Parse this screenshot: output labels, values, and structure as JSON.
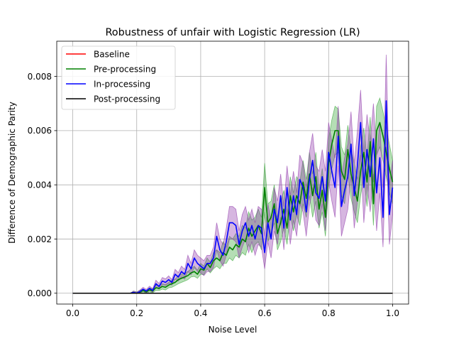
{
  "chart_data": {
    "type": "line",
    "title": "Robustness of unfair with Logistic Regression (LR)",
    "xlabel": "Noise Level",
    "ylabel": "Difference of Demographic Parity",
    "xlim": [
      -0.05,
      1.05
    ],
    "ylim": [
      -0.0004,
      0.0093
    ],
    "grid": true,
    "legend_position": "top-left",
    "x_ticks": [
      0.0,
      0.2,
      0.4,
      0.6,
      0.8,
      1.0
    ],
    "x_tick_labels": [
      "0.0",
      "0.2",
      "0.4",
      "0.6",
      "0.8",
      "1.0"
    ],
    "y_ticks": [
      0.0,
      0.002,
      0.004,
      0.006,
      0.008
    ],
    "y_tick_labels": [
      "0.000",
      "0.002",
      "0.004",
      "0.006",
      "0.008"
    ],
    "x": [
      0.0,
      0.01,
      0.02,
      0.03,
      0.04,
      0.05,
      0.06,
      0.07,
      0.08,
      0.09,
      0.1,
      0.11,
      0.12,
      0.13,
      0.14,
      0.15,
      0.16,
      0.17,
      0.18,
      0.19,
      0.2,
      0.21,
      0.22,
      0.23,
      0.24,
      0.25,
      0.26,
      0.27,
      0.28,
      0.29,
      0.3,
      0.31,
      0.32,
      0.33,
      0.34,
      0.35,
      0.36,
      0.37,
      0.38,
      0.39,
      0.4,
      0.41,
      0.42,
      0.43,
      0.44,
      0.45,
      0.46,
      0.47,
      0.48,
      0.49,
      0.5,
      0.51,
      0.52,
      0.53,
      0.54,
      0.55,
      0.56,
      0.57,
      0.58,
      0.59,
      0.6,
      0.61,
      0.62,
      0.63,
      0.64,
      0.65,
      0.66,
      0.67,
      0.68,
      0.69,
      0.7,
      0.71,
      0.72,
      0.73,
      0.74,
      0.75,
      0.76,
      0.77,
      0.78,
      0.79,
      0.8,
      0.81,
      0.82,
      0.83,
      0.84,
      0.85,
      0.86,
      0.87,
      0.88,
      0.89,
      0.9,
      0.91,
      0.92,
      0.93,
      0.94,
      0.95,
      0.96,
      0.97,
      0.98,
      0.99,
      1.0
    ],
    "series": [
      {
        "name": "Baseline",
        "color": "#ff0000",
        "values": [
          0,
          0,
          0,
          0,
          0,
          0,
          0,
          0,
          0,
          0,
          0,
          0,
          0,
          0,
          0,
          0,
          0,
          0,
          0,
          0,
          0,
          0,
          0,
          0,
          0,
          0,
          0,
          0,
          0,
          0,
          0,
          0,
          0,
          0,
          0,
          0,
          0,
          0,
          0,
          0,
          0,
          0,
          0,
          0,
          0,
          0,
          0,
          0,
          0,
          0,
          0,
          0,
          0,
          0,
          0,
          0,
          0,
          0,
          0,
          0,
          0,
          0,
          0,
          0,
          0,
          0,
          0,
          0,
          0,
          0,
          0,
          0,
          0,
          0,
          0,
          0,
          0,
          0,
          0,
          0,
          0,
          0,
          0,
          0,
          0,
          0,
          0,
          0,
          0,
          0,
          0,
          0,
          0,
          0,
          0,
          0,
          0,
          0,
          0,
          0,
          0
        ]
      },
      {
        "name": "Pre-processing",
        "color": "#008000",
        "band_color": "#2ca02c",
        "values": [
          0,
          0,
          0,
          0,
          0,
          0,
          0,
          0,
          0,
          0,
          0,
          0,
          0,
          0,
          0,
          0,
          0,
          0,
          0,
          3e-05,
          0,
          4e-05,
          0.0001,
          5e-05,
          0.00012,
          8e-05,
          0.0002,
          0.00018,
          0.00025,
          0.00022,
          0.0003,
          0.00035,
          0.0004,
          0.0005,
          0.00055,
          0.0006,
          0.00065,
          0.00075,
          0.0008,
          0.0007,
          0.0009,
          0.00085,
          0.0011,
          0.00095,
          0.0012,
          0.0013,
          0.0012,
          0.0015,
          0.0014,
          0.0017,
          0.0016,
          0.0018,
          0.0017,
          0.002,
          0.0019,
          0.0024,
          0.0021,
          0.0023,
          0.0025,
          0.0022,
          0.0039,
          0.0026,
          0.0028,
          0.0033,
          0.0022,
          0.0026,
          0.0031,
          0.0024,
          0.0036,
          0.003,
          0.0036,
          0.0033,
          0.0041,
          0.0035,
          0.0044,
          0.0036,
          0.0043,
          0.0031,
          0.0038,
          0.0028,
          0.0048,
          0.0055,
          0.006,
          0.006,
          0.0045,
          0.0042,
          0.0053,
          0.0044,
          0.0039,
          0.0034,
          0.0045,
          0.0052,
          0.0041,
          0.0056,
          0.0033,
          0.006,
          0.0063,
          0.0058,
          0.0052,
          0.0046,
          0.0041
        ],
        "lower": [
          0,
          0,
          0,
          0,
          0,
          0,
          0,
          0,
          0,
          0,
          0,
          0,
          0,
          0,
          0,
          0,
          0,
          0,
          0,
          0,
          0,
          0,
          5e-05,
          0,
          5e-05,
          2e-05,
          0.0001,
          0.0001,
          0.00015,
          0.00012,
          0.0002,
          0.00022,
          0.00028,
          0.00035,
          0.0004,
          0.00045,
          0.0005,
          0.0006,
          0.00062,
          0.00055,
          0.0007,
          0.00068,
          0.0009,
          0.00075,
          0.0009,
          0.001,
          0.0009,
          0.0011,
          0.0011,
          0.0013,
          0.0012,
          0.0014,
          0.0013,
          0.0015,
          0.0014,
          0.0018,
          0.0015,
          0.0018,
          0.0019,
          0.0016,
          0.003,
          0.0019,
          0.0022,
          0.0026,
          0.0016,
          0.0019,
          0.0024,
          0.0018,
          0.0029,
          0.0023,
          0.0029,
          0.0025,
          0.0033,
          0.0028,
          0.0036,
          0.0028,
          0.0034,
          0.0024,
          0.003,
          0.0021,
          0.0039,
          0.0046,
          0.0051,
          0.0052,
          0.0036,
          0.0033,
          0.0044,
          0.0035,
          0.003,
          0.0026,
          0.0036,
          0.0043,
          0.0032,
          0.0047,
          0.0025,
          0.0051,
          0.0054,
          0.0049,
          0.0043,
          0.0037,
          0.0033
        ],
        "upper": [
          0,
          0,
          0,
          0,
          0,
          0,
          0,
          0,
          0,
          0,
          0,
          0,
          0,
          0,
          0,
          0,
          0,
          0,
          0,
          8e-05,
          5e-05,
          0.0001,
          0.00016,
          0.0001,
          0.0002,
          0.00015,
          0.0003,
          0.00028,
          0.00035,
          0.00032,
          0.0004,
          0.00048,
          0.00052,
          0.00065,
          0.0007,
          0.00075,
          0.0008,
          0.0009,
          0.001,
          0.00085,
          0.0011,
          0.001,
          0.0013,
          0.00115,
          0.0015,
          0.0016,
          0.0015,
          0.0019,
          0.0017,
          0.0021,
          0.002,
          0.0022,
          0.0021,
          0.0025,
          0.0024,
          0.003,
          0.0027,
          0.0028,
          0.0031,
          0.0028,
          0.0048,
          0.0033,
          0.0034,
          0.004,
          0.0028,
          0.0033,
          0.0038,
          0.003,
          0.0043,
          0.0037,
          0.0043,
          0.0041,
          0.0049,
          0.0042,
          0.0052,
          0.0044,
          0.0052,
          0.0038,
          0.0046,
          0.0035,
          0.0057,
          0.0064,
          0.0069,
          0.0068,
          0.0054,
          0.0051,
          0.0062,
          0.0053,
          0.0048,
          0.0042,
          0.0054,
          0.0061,
          0.005,
          0.0065,
          0.0041,
          0.0069,
          0.0072,
          0.0067,
          0.0061,
          0.0055,
          0.0049
        ]
      },
      {
        "name": "In-processing",
        "color": "#0000ff",
        "band_color": "#8a2ea6",
        "values": [
          0,
          0,
          0,
          0,
          0,
          0,
          0,
          0,
          0,
          0,
          0,
          0,
          0,
          0,
          0,
          0,
          0,
          0,
          0,
          3e-05,
          0,
          6e-05,
          0.00015,
          8e-05,
          0.00018,
          0.0001,
          0.00035,
          0.00025,
          0.00045,
          0.0004,
          0.0005,
          0.0004,
          0.0007,
          0.0006,
          0.0008,
          0.0007,
          0.0011,
          0.0009,
          0.0013,
          0.0011,
          0.001,
          0.0009,
          0.0011,
          0.0011,
          0.0013,
          0.0021,
          0.0016,
          0.0014,
          0.0019,
          0.0026,
          0.0026,
          0.0025,
          0.0018,
          0.0023,
          0.0026,
          0.0021,
          0.0025,
          0.002,
          0.0025,
          0.0024,
          0.0015,
          0.0026,
          0.002,
          0.0031,
          0.0026,
          0.0036,
          0.0024,
          0.0039,
          0.0027,
          0.0036,
          0.0029,
          0.0042,
          0.0039,
          0.003,
          0.0042,
          0.0049,
          0.0037,
          0.0035,
          0.0043,
          0.0034,
          0.0052,
          0.0045,
          0.0039,
          0.0058,
          0.0032,
          0.0038,
          0.0043,
          0.0055,
          0.0036,
          0.0047,
          0.0063,
          0.0039,
          0.0053,
          0.0043,
          0.0057,
          0.0037,
          0.005,
          0.0028,
          0.0071,
          0.0029,
          0.0039
        ],
        "lower": [
          0,
          0,
          0,
          0,
          0,
          0,
          0,
          0,
          0,
          0,
          0,
          0,
          0,
          0,
          0,
          0,
          0,
          0,
          0,
          0,
          0,
          2e-05,
          8e-05,
          2e-05,
          0.0001,
          4e-05,
          0.00022,
          0.00015,
          0.00032,
          0.00028,
          0.00036,
          0.0003,
          0.00052,
          0.00045,
          0.0006,
          0.00052,
          0.0008,
          0.00068,
          0.00095,
          0.0008,
          0.00075,
          0.00065,
          0.0008,
          0.0008,
          0.00095,
          0.0016,
          0.0012,
          0.001,
          0.0014,
          0.002,
          0.002,
          0.0019,
          0.0013,
          0.0017,
          0.002,
          0.0015,
          0.0019,
          0.0014,
          0.0018,
          0.0017,
          0.0009,
          0.0019,
          0.0013,
          0.0023,
          0.0018,
          0.0028,
          0.0016,
          0.0031,
          0.0018,
          0.0027,
          0.0021,
          0.0033,
          0.003,
          0.0021,
          0.0032,
          0.0039,
          0.0027,
          0.0025,
          0.0033,
          0.0023,
          0.0041,
          0.0034,
          0.0028,
          0.0047,
          0.0021,
          0.0026,
          0.0031,
          0.0043,
          0.0024,
          0.0034,
          0.0051,
          0.0026,
          0.004,
          0.003,
          0.0044,
          0.0023,
          0.0037,
          0.0017,
          0.0054,
          0.0018,
          0.0029
        ],
        "upper": [
          0,
          0,
          0,
          0,
          0,
          0,
          0,
          0,
          0,
          0,
          0,
          0,
          0,
          0,
          0,
          0,
          0,
          0,
          0,
          8e-05,
          4e-05,
          0.00012,
          0.00022,
          0.00014,
          0.00026,
          0.00017,
          0.00048,
          0.00036,
          0.00058,
          0.00053,
          0.00064,
          0.0005,
          0.00088,
          0.00076,
          0.001,
          0.00088,
          0.0014,
          0.0011,
          0.0016,
          0.0014,
          0.0013,
          0.0012,
          0.0014,
          0.0014,
          0.0017,
          0.0026,
          0.002,
          0.0018,
          0.0024,
          0.0032,
          0.0032,
          0.0031,
          0.0023,
          0.0029,
          0.0032,
          0.0027,
          0.0031,
          0.0026,
          0.0032,
          0.0031,
          0.0021,
          0.0033,
          0.0027,
          0.0039,
          0.0034,
          0.0044,
          0.0032,
          0.0047,
          0.0036,
          0.0045,
          0.0037,
          0.0051,
          0.0048,
          0.0039,
          0.0052,
          0.0059,
          0.0047,
          0.0045,
          0.0053,
          0.0045,
          0.0063,
          0.0056,
          0.005,
          0.0069,
          0.0043,
          0.005,
          0.0055,
          0.0067,
          0.0048,
          0.006,
          0.0075,
          0.0052,
          0.0066,
          0.0056,
          0.007,
          0.0051,
          0.0063,
          0.0039,
          0.0088,
          0.004,
          0.0049
        ]
      },
      {
        "name": "Post-processing",
        "color": "#000000",
        "values": [
          0,
          0,
          0,
          0,
          0,
          0,
          0,
          0,
          0,
          0,
          0,
          0,
          0,
          0,
          0,
          0,
          0,
          0,
          0,
          0,
          0,
          0,
          0,
          0,
          0,
          0,
          0,
          0,
          0,
          0,
          0,
          0,
          0,
          0,
          0,
          0,
          0,
          0,
          0,
          0,
          0,
          0,
          0,
          0,
          0,
          0,
          0,
          0,
          0,
          0,
          0,
          0,
          0,
          0,
          0,
          0,
          0,
          0,
          0,
          0,
          0,
          0,
          0,
          0,
          0,
          0,
          0,
          0,
          0,
          0,
          0,
          0,
          0,
          0,
          0,
          0,
          0,
          0,
          0,
          0,
          0,
          0,
          0,
          0,
          0,
          0,
          0,
          0,
          0,
          0,
          0,
          0,
          0,
          0,
          0,
          0,
          0,
          0,
          0,
          0,
          0
        ]
      }
    ]
  }
}
